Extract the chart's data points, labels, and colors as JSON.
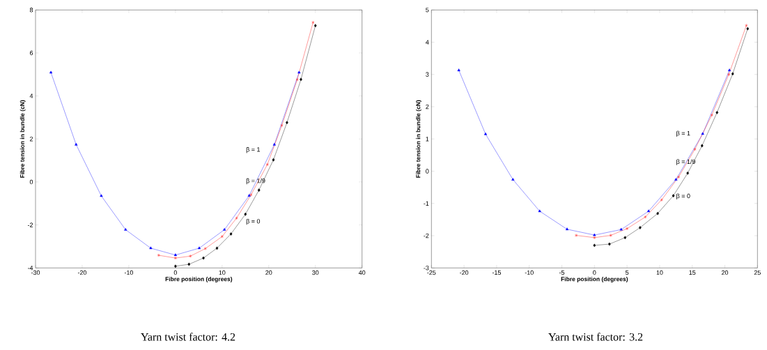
{
  "chart_data": [
    {
      "type": "line",
      "title": "Yarn twist factor: 4.2",
      "xlabel": "Fibre position (degrees)",
      "ylabel": "Fibre tension in bundle (cN)",
      "xlim": [
        -30,
        40
      ],
      "xticks": [
        -30,
        -20,
        -10,
        0,
        10,
        20,
        30,
        40
      ],
      "ylim": [
        -4,
        8
      ],
      "yticks": [
        -4,
        -2,
        0,
        2,
        4,
        6,
        8
      ],
      "grid": false,
      "legend": false,
      "series": [
        {
          "name": "β = 1",
          "color": "#0000ff",
          "marker": "triangle",
          "x": [
            -26.7,
            -21.3,
            -15.9,
            -10.7,
            -5.3,
            0,
            5.1,
            10.5,
            15.8,
            21.2,
            26.5
          ],
          "values": [
            5.09,
            1.74,
            -0.65,
            -2.22,
            -3.08,
            -3.4,
            -3.08,
            -2.22,
            -0.64,
            1.74,
            5.09
          ]
        },
        {
          "name": "β = 1/9",
          "color": "#ff0000",
          "marker": "cross",
          "x": [
            -3.6,
            0,
            3.2,
            6.4,
            10.0,
            13.1,
            16.2,
            19.7,
            22.8,
            26.1,
            29.5
          ],
          "values": [
            -3.41,
            -3.54,
            -3.45,
            -3.1,
            -2.54,
            -1.68,
            -0.6,
            0.81,
            2.63,
            4.76,
            7.42
          ]
        },
        {
          "name": "β = 0",
          "color": "#000000",
          "marker": "diamond",
          "x": [
            0,
            2.9,
            6.0,
            8.9,
            11.9,
            15.0,
            17.9,
            21.0,
            23.9,
            26.9,
            30.0
          ],
          "values": [
            -3.92,
            -3.83,
            -3.54,
            -3.08,
            -2.42,
            -1.5,
            -0.38,
            1.03,
            2.76,
            4.77,
            7.27
          ]
        }
      ]
    },
    {
      "type": "line",
      "title": "Yarn twist factor: 3.2",
      "xlabel": "Fibre position (degrees)",
      "ylabel": "Fibre tension in bundle (cN)",
      "xlim": [
        -25,
        25
      ],
      "xticks": [
        -25,
        -20,
        -15,
        -10,
        -5,
        0,
        5,
        10,
        15,
        20,
        25
      ],
      "ylim": [
        -3,
        5
      ],
      "yticks": [
        -3,
        -2,
        -1,
        0,
        1,
        2,
        3,
        4,
        5
      ],
      "grid": false,
      "legend": false,
      "series": [
        {
          "name": "β = 1",
          "color": "#0000ff",
          "marker": "triangle",
          "x": [
            -20.8,
            -16.7,
            -12.5,
            -8.4,
            -4.2,
            0,
            4.1,
            8.3,
            12.5,
            16.6,
            20.7
          ],
          "values": [
            3.13,
            1.15,
            -0.26,
            -1.24,
            -1.8,
            -1.98,
            -1.81,
            -1.24,
            -0.26,
            1.16,
            3.13
          ]
        },
        {
          "name": "β = 1/9",
          "color": "#ff0000",
          "marker": "cross",
          "x": [
            -2.8,
            0,
            2.5,
            5.0,
            7.8,
            10.3,
            12.9,
            15.4,
            18.0,
            20.6,
            23.3
          ],
          "values": [
            -1.99,
            -2.06,
            -1.99,
            -1.78,
            -1.42,
            -0.89,
            -0.18,
            0.68,
            1.74,
            3.0,
            4.52
          ]
        },
        {
          "name": "β = 0",
          "color": "#000000",
          "marker": "diamond",
          "x": [
            0,
            2.3,
            4.7,
            7.0,
            9.7,
            12.1,
            14.3,
            16.5,
            18.8,
            21.2,
            23.5
          ],
          "values": [
            -2.3,
            -2.26,
            -2.06,
            -1.75,
            -1.31,
            -0.76,
            -0.06,
            0.79,
            1.82,
            3.02,
            4.42
          ]
        }
      ]
    }
  ]
}
